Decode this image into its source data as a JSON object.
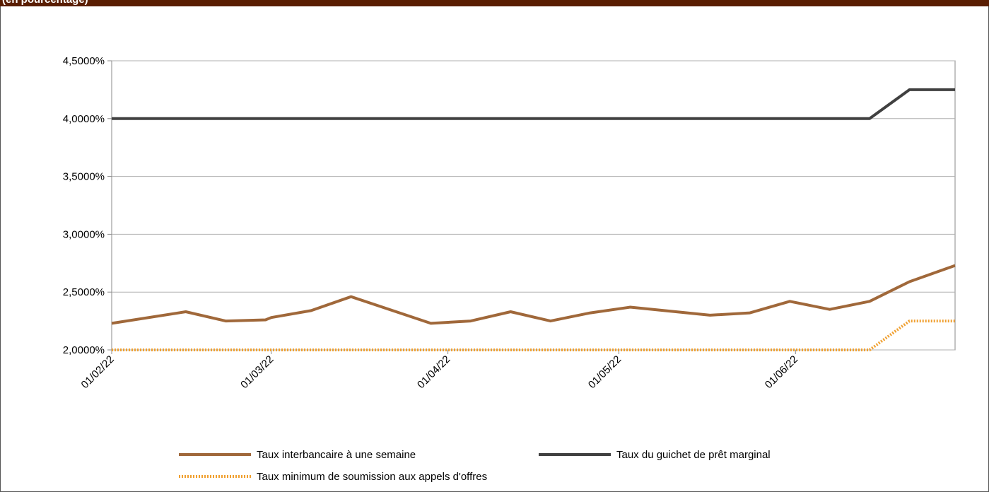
{
  "header": {
    "title": "(en pourcentage)"
  },
  "chart_data": {
    "type": "line",
    "ylim": [
      2.0,
      4.5
    ],
    "y_ticks": [
      "2,0000%",
      "2,5000%",
      "3,0000%",
      "3,5000%",
      "4,0000%",
      "4,5000%"
    ],
    "x_ticks": [
      "01/02/22",
      "01/03/22",
      "01/04/22",
      "01/05/22",
      "01/06/22"
    ],
    "x_ticks_day": [
      0,
      28,
      59,
      89,
      120
    ],
    "x_range_days": [
      0,
      148
    ],
    "grid": true,
    "legend_position": "bottom",
    "series": [
      {
        "name": "Taux interbancaire à une semaine",
        "color": "#a0683a",
        "style": "solid",
        "x": [
          0,
          13,
          20,
          27,
          28,
          35,
          42,
          56,
          63,
          70,
          77,
          84,
          91,
          105,
          112,
          119,
          126,
          133,
          140,
          148
        ],
        "y": [
          2.23,
          2.33,
          2.25,
          2.26,
          2.28,
          2.34,
          2.46,
          2.23,
          2.25,
          2.33,
          2.25,
          2.32,
          2.37,
          2.3,
          2.32,
          2.42,
          2.35,
          2.42,
          2.59,
          2.73
        ]
      },
      {
        "name": "Taux du guichet de prêt marginal",
        "color": "#404040",
        "style": "solid",
        "x": [
          0,
          133,
          140,
          148
        ],
        "y": [
          4.0,
          4.0,
          4.25,
          4.25
        ]
      },
      {
        "name": "Taux minimum de soumission aux appels d'offres",
        "color": "#f0a030",
        "style": "dotted",
        "x": [
          0,
          133,
          140,
          148
        ],
        "y": [
          2.0,
          2.0,
          2.25,
          2.25
        ]
      }
    ]
  }
}
